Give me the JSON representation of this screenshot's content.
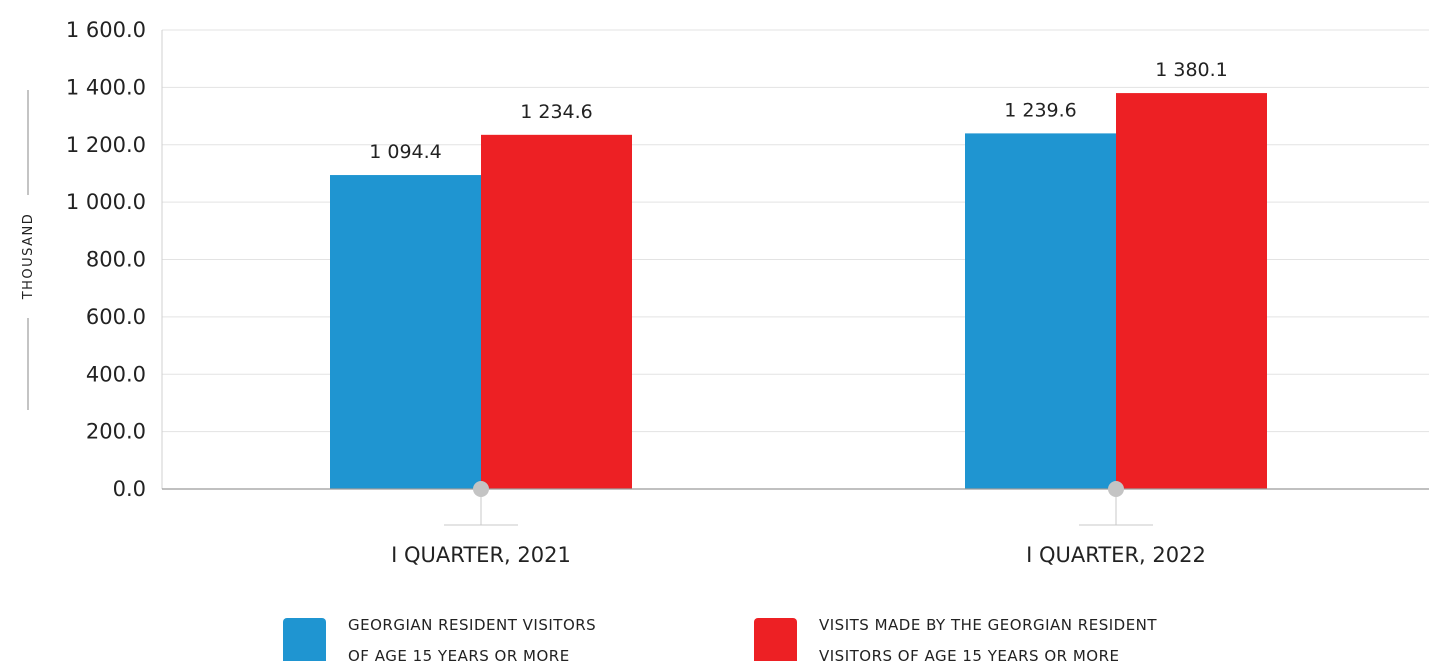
{
  "chart_data": {
    "type": "bar",
    "ylabel": "THOUSAND",
    "ylim": [
      0,
      1600
    ],
    "yticks": [
      "0.0",
      "200.0",
      "400.0",
      "600.0",
      "800.0",
      "1 000.0",
      "1 200.0",
      "1 400.0",
      "1 600.0"
    ],
    "ytick_values": [
      0,
      200,
      400,
      600,
      800,
      1000,
      1200,
      1400,
      1600
    ],
    "grid": true,
    "categories": [
      "I QUARTER, 2021",
      "I QUARTER, 2022"
    ],
    "series": [
      {
        "name": "GEORGIAN RESIDENT VISITORS OF AGE 15 YEARS OR MORE",
        "legend_lines": [
          "GEORGIAN RESIDENT VISITORS",
          "OF AGE 15 YEARS OR MORE"
        ],
        "color": "#1f95d1",
        "values": [
          1094.4,
          1239.6
        ],
        "labels": [
          "1 094.4",
          "1 239.6"
        ]
      },
      {
        "name": "VISITS MADE BY THE GEORGIAN RESIDENT VISITORS OF AGE 15 YEARS OR MORE",
        "legend_lines": [
          "VISITS MADE BY THE GEORGIAN RESIDENT",
          "VISITORS OF AGE 15 YEARS OR MORE"
        ],
        "color": "#ed2024",
        "values": [
          1234.6,
          1380.1
        ],
        "labels": [
          "1 234.6",
          "1 380.1"
        ]
      }
    ],
    "legend_position": "bottom"
  }
}
